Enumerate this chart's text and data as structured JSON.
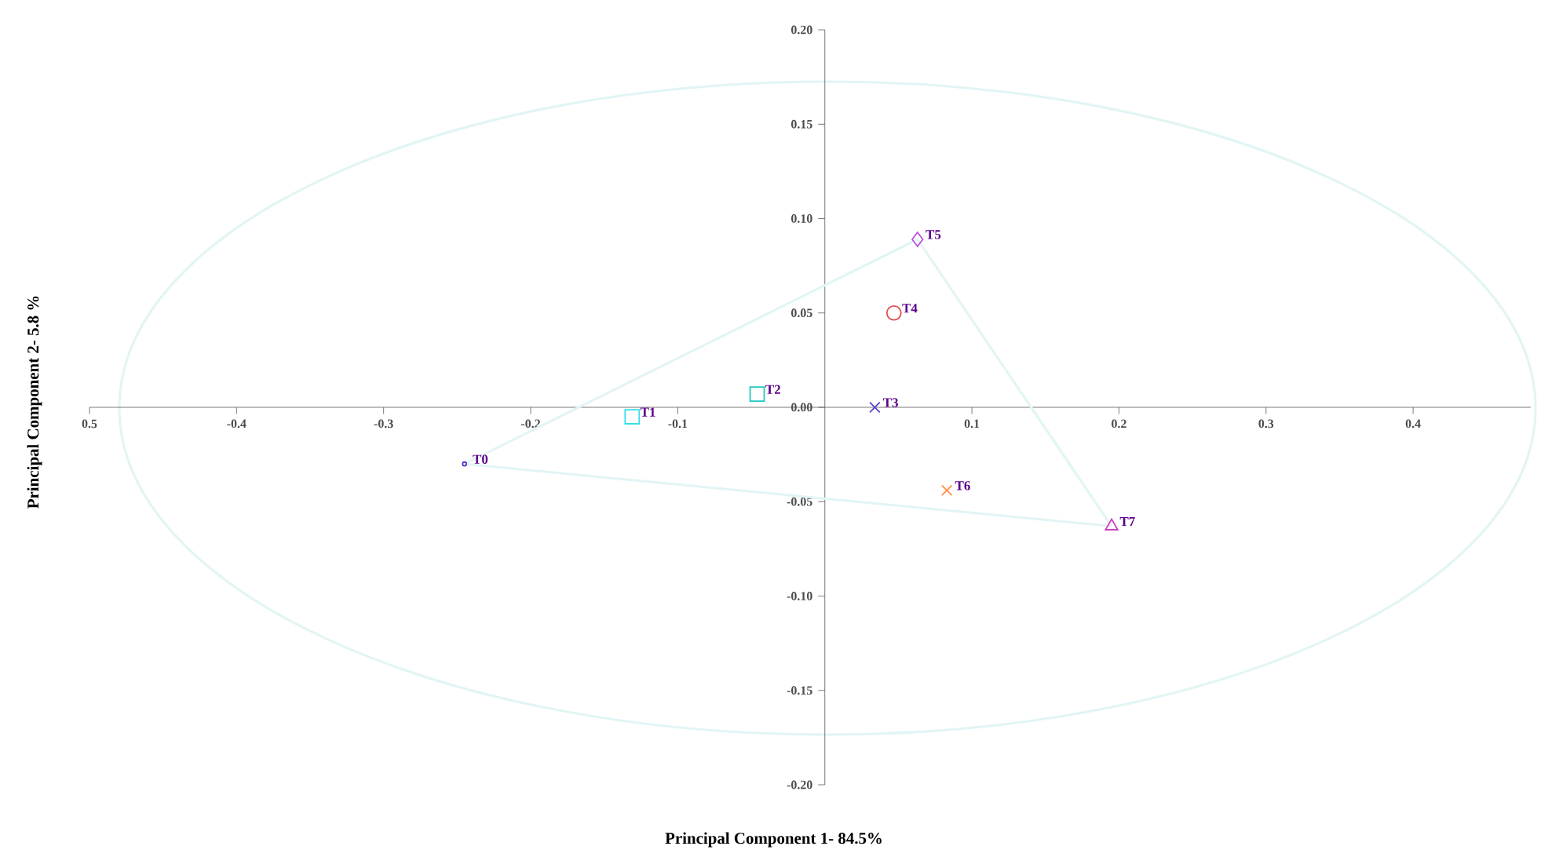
{
  "chart_data": {
    "type": "scatter",
    "xlabel": "Principal Component 1- 84.5%",
    "ylabel": "Principal Component 2- 5.8 %",
    "xlim": [
      -0.5,
      0.48
    ],
    "ylim": [
      -0.2,
      0.2
    ],
    "xticks": [
      {
        "value": -0.5,
        "label": "0.5"
      },
      -0.4,
      -0.3,
      -0.2,
      -0.1,
      0.1,
      0.2,
      0.3,
      0.4
    ],
    "yticks": [
      {
        "value": -0.2,
        "label": "-0.20"
      },
      {
        "value": -0.15,
        "label": "-0.15"
      },
      {
        "value": -0.1,
        "label": "-0.10"
      },
      {
        "value": -0.05,
        "label": "-0.05"
      },
      {
        "value": 0,
        "label": "0.00"
      },
      {
        "value": 0.05,
        "label": "0.05"
      },
      {
        "value": 0.1,
        "label": "0.10"
      },
      {
        "value": 0.15,
        "label": "0.15"
      },
      {
        "value": 0.2,
        "label": "0.20"
      }
    ],
    "grid": false,
    "series": [
      {
        "type": "line",
        "color": "#e2f5f5",
        "x": [
          -0.245,
          0.063,
          0.195
        ],
        "values": [
          -0.03,
          0.089,
          -0.063
        ],
        "marker": "none"
      },
      {
        "type": "line",
        "color": "#e2f5f5",
        "x": [
          0.195,
          -0.245
        ],
        "values": [
          -0.063,
          -0.03
        ],
        "marker": "none"
      },
      {
        "name": "T0",
        "color": "#5b2fc9",
        "x": [
          -0.245
        ],
        "values": [
          -0.03
        ],
        "marker": "circle"
      },
      {
        "name": "T1",
        "color": "#33e0e8",
        "x": [
          -0.131
        ],
        "values": [
          -0.005
        ],
        "marker": "square"
      },
      {
        "name": "T2",
        "color": "#20c8c0",
        "x": [
          -0.046
        ],
        "values": [
          0.007
        ],
        "marker": "square"
      },
      {
        "name": "T3",
        "color": "#5a3fd0",
        "x": [
          0.034
        ],
        "values": [
          0.0
        ],
        "marker": "cross"
      },
      {
        "name": "T4",
        "color": "#e05050",
        "x": [
          0.047
        ],
        "values": [
          0.05
        ],
        "marker": "circle"
      },
      {
        "name": "T5",
        "color": "#c050e0",
        "x": [
          0.063
        ],
        "values": [
          0.089
        ],
        "marker": "diamond"
      },
      {
        "name": "T6",
        "color": "#ff9050",
        "x": [
          0.083
        ],
        "values": [
          -0.044
        ],
        "marker": "cross"
      },
      {
        "name": "T7",
        "color": "#d040c0",
        "x": [
          0.195
        ],
        "values": [
          -0.063
        ],
        "marker": "triangle"
      }
    ]
  }
}
